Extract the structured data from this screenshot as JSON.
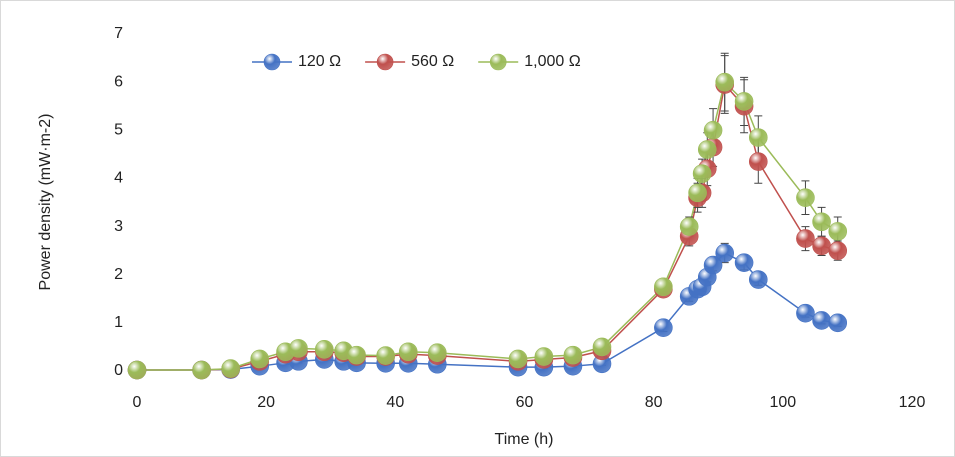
{
  "chart_data": {
    "type": "line",
    "x_label": "Time (h)",
    "y_label": "Power density (mW·m-2)",
    "xlim": [
      0,
      120
    ],
    "xticks": [
      0,
      20,
      40,
      60,
      80,
      100,
      120
    ],
    "ylim": [
      0,
      7
    ],
    "yticks": [
      0,
      1,
      2,
      3,
      4,
      5,
      6,
      7
    ],
    "grid": false,
    "legend": "top",
    "x": [
      0,
      10,
      14.5,
      19,
      23,
      25,
      29,
      32,
      34,
      38.5,
      42,
      46.5,
      59,
      63,
      67.5,
      72,
      81.5,
      85.5,
      86.8,
      87.5,
      88.3,
      89.2,
      91,
      94,
      96.2,
      103.5,
      106,
      108.5
    ],
    "series": [
      {
        "name": "120 Ω",
        "color": "#4472c4",
        "values": [
          0.02,
          0.02,
          0.03,
          0.1,
          0.17,
          0.2,
          0.24,
          0.2,
          0.17,
          0.16,
          0.16,
          0.14,
          0.08,
          0.08,
          0.1,
          0.15,
          0.9,
          1.55,
          1.7,
          1.75,
          1.95,
          2.2,
          2.45,
          2.25,
          1.9,
          1.2,
          1.05,
          1.0
        ],
        "errors": [
          0.02,
          0.02,
          0.02,
          0.03,
          0.03,
          0.03,
          0.03,
          0.03,
          0.03,
          0.03,
          0.03,
          0.03,
          0.03,
          0.03,
          0.03,
          0.03,
          0.08,
          0.1,
          0.1,
          0.1,
          0.1,
          0.12,
          0.2,
          0.15,
          0.12,
          0.08,
          0.07,
          0.07
        ]
      },
      {
        "name": "560 Ω",
        "color": "#c0504d",
        "values": [
          0.02,
          0.02,
          0.04,
          0.2,
          0.35,
          0.4,
          0.4,
          0.38,
          0.3,
          0.3,
          0.35,
          0.32,
          0.2,
          0.24,
          0.28,
          0.42,
          1.7,
          2.8,
          3.6,
          3.7,
          4.2,
          4.65,
          5.95,
          5.5,
          4.35,
          2.75,
          2.6,
          2.5
        ],
        "errors": [
          0.02,
          0.02,
          0.02,
          0.04,
          0.05,
          0.05,
          0.05,
          0.05,
          0.05,
          0.05,
          0.05,
          0.05,
          0.04,
          0.04,
          0.04,
          0.05,
          0.1,
          0.2,
          0.3,
          0.3,
          0.35,
          0.4,
          0.6,
          0.55,
          0.45,
          0.25,
          0.2,
          0.2
        ]
      },
      {
        "name": "1,000 Ω",
        "color": "#9bbb59",
        "values": [
          0.02,
          0.02,
          0.05,
          0.25,
          0.4,
          0.47,
          0.45,
          0.42,
          0.33,
          0.32,
          0.4,
          0.38,
          0.25,
          0.3,
          0.33,
          0.5,
          1.75,
          3.0,
          3.7,
          4.1,
          4.6,
          5.0,
          6.0,
          5.6,
          4.85,
          3.6,
          3.1,
          2.9
        ],
        "errors": [
          0.02,
          0.02,
          0.02,
          0.04,
          0.05,
          0.05,
          0.05,
          0.05,
          0.05,
          0.05,
          0.05,
          0.05,
          0.04,
          0.04,
          0.04,
          0.05,
          0.1,
          0.2,
          0.3,
          0.3,
          0.35,
          0.45,
          0.6,
          0.5,
          0.45,
          0.35,
          0.3,
          0.3
        ]
      }
    ]
  }
}
